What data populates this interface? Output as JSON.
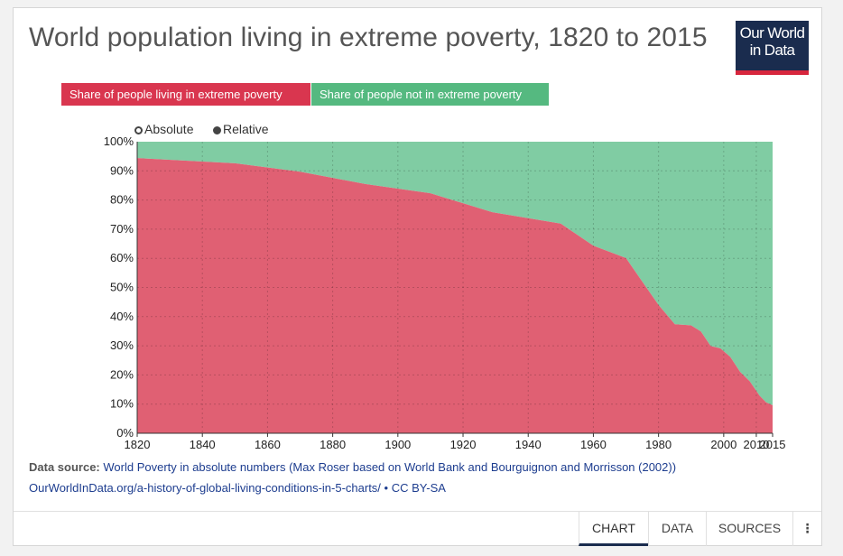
{
  "title": "World population living in extreme poverty, 1820 to 2015",
  "logo": {
    "line1": "Our World",
    "line2": "in Data"
  },
  "legend_buttons": [
    "Share of people living in extreme poverty",
    "Share of people not in extreme poverty"
  ],
  "mode_toggle": {
    "absolute": "Absolute",
    "relative": "Relative",
    "selected": "relative"
  },
  "source": {
    "label": "Data source:",
    "text": "World Poverty in absolute numbers (Max Roser based on World Bank and Bourguignon and Morrisson (2002))",
    "url": "OurWorldInData.org/a-history-of-global-living-conditions-in-5-charts/",
    "license": "• CC BY-SA"
  },
  "tabs": [
    "CHART",
    "DATA",
    "SOURCES",
    "⋮"
  ],
  "colors": {
    "poverty": "#e06073",
    "not_poverty": "#80cca3",
    "logo_bg": "#1a2c4e",
    "logo_accent": "#d7263d"
  },
  "chart_data": {
    "type": "area",
    "stacked": true,
    "xlim": [
      1820,
      2015
    ],
    "ylim": [
      0,
      100
    ],
    "x_ticks": [
      1820,
      1840,
      1860,
      1880,
      1900,
      1920,
      1940,
      1960,
      1980,
      2000,
      2010,
      2015
    ],
    "y_ticks": [
      "0%",
      "10%",
      "20%",
      "30%",
      "40%",
      "50%",
      "60%",
      "70%",
      "80%",
      "90%",
      "100%"
    ],
    "grid": true,
    "legend": "top-left",
    "x": [
      1820,
      1850,
      1870,
      1890,
      1910,
      1929,
      1950,
      1960,
      1970,
      1975,
      1980,
      1985,
      1990,
      1993,
      1996,
      1999,
      2002,
      2005,
      2008,
      2011,
      2013,
      2015
    ],
    "series": [
      {
        "name": "Share of people living in extreme poverty",
        "values": [
          94.4,
          92.6,
          89.7,
          85.5,
          82.3,
          75.8,
          71.9,
          64.3,
          60.1,
          52,
          44,
          37.4,
          37,
          34.9,
          29.9,
          29.1,
          26.2,
          21.1,
          17.8,
          12.9,
          10.6,
          9.6
        ]
      },
      {
        "name": "Share of people not in extreme poverty",
        "values": [
          5.6,
          7.4,
          10.3,
          14.5,
          17.7,
          24.2,
          28.1,
          35.7,
          39.9,
          48,
          56,
          62.6,
          63,
          65.1,
          70.1,
          70.9,
          73.8,
          78.9,
          82.2,
          87.1,
          89.4,
          90.4
        ]
      }
    ]
  }
}
